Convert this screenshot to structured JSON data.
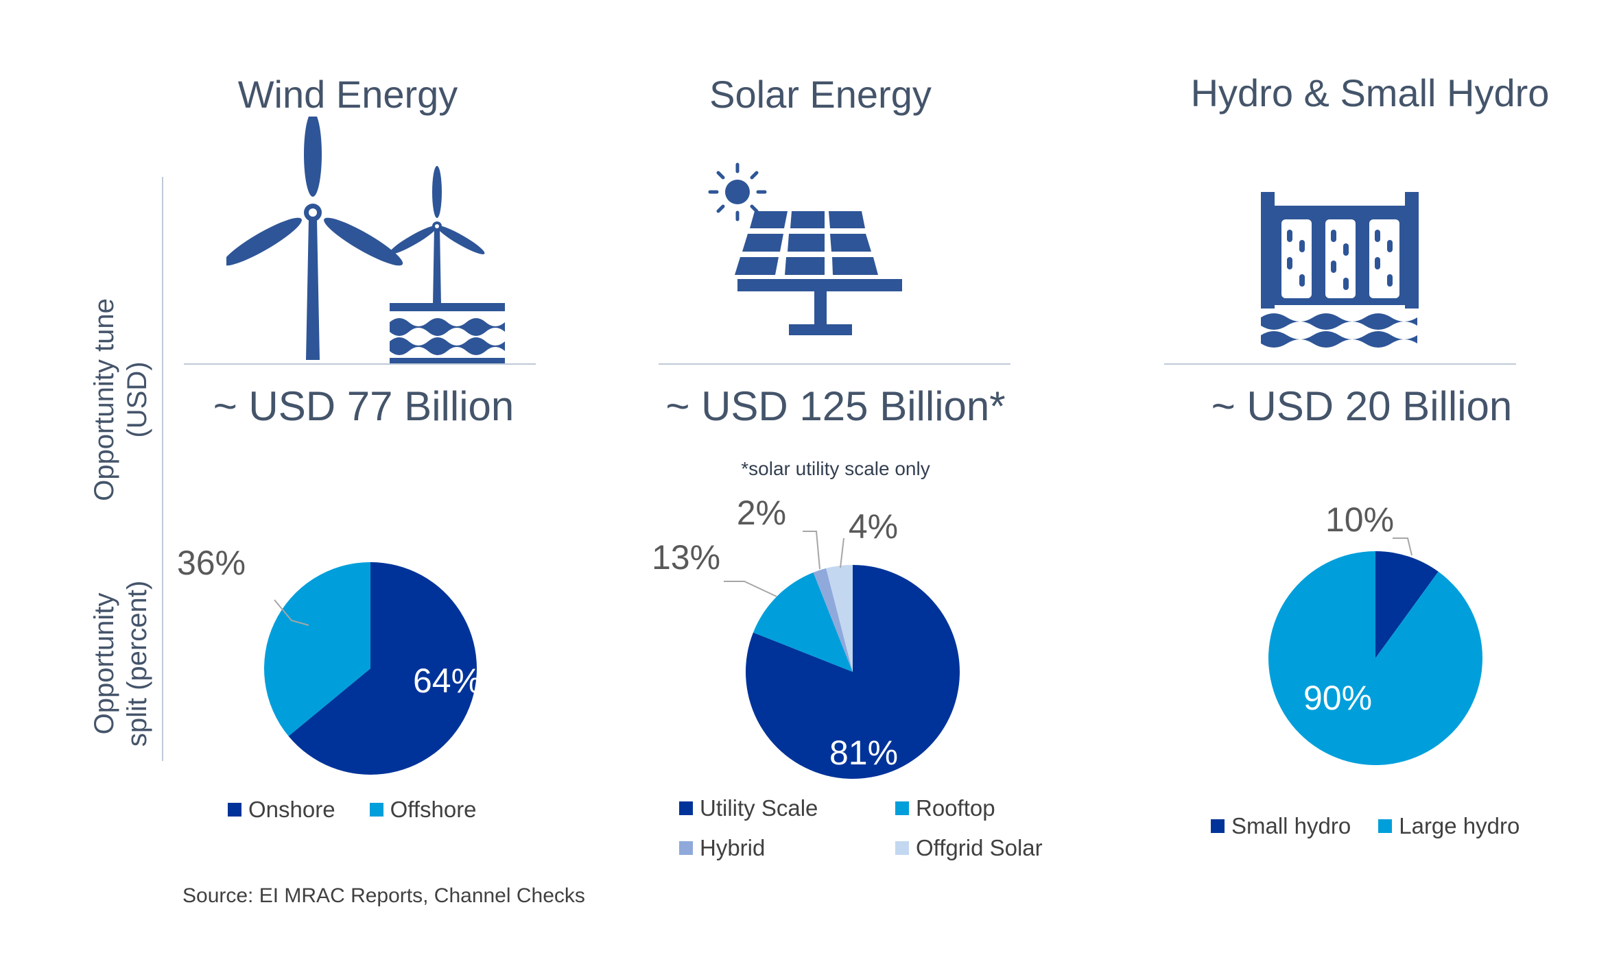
{
  "side_labels": {
    "tune": [
      "Opportunity tune",
      "(USD)"
    ],
    "split": [
      "Opportunity",
      "split (percent)"
    ]
  },
  "colors": {
    "dark_blue": "#003399",
    "light_blue": "#009fdb",
    "hybrid": "#8fa9db",
    "offgrid": "#c3d8f0",
    "icon": "#2e5597",
    "text": "#44546a"
  },
  "panels": {
    "wind": {
      "title": "Wind Energy",
      "amount": "~ USD 77 Billion",
      "icon": "wind-turbine-icon"
    },
    "solar": {
      "title": "Solar Energy",
      "amount": "~ USD 125 Billion*",
      "note": "*solar utility scale only",
      "icon": "solar-panel-icon"
    },
    "hydro": {
      "title": "Hydro & Small Hydro",
      "amount": "~ USD 20 Billion",
      "icon": "hydro-dam-icon"
    }
  },
  "source": "Source: EI MRAC Reports, Channel Checks",
  "chart_data": [
    {
      "type": "pie",
      "title": "Wind Energy",
      "categories": [
        "Onshore",
        "Offshore"
      ],
      "values": [
        64,
        36
      ],
      "labels": [
        "64%",
        "36%"
      ],
      "colors": [
        "#003399",
        "#009fdb"
      ],
      "legend": "bottom"
    },
    {
      "type": "pie",
      "title": "Solar Energy",
      "categories": [
        "Utility Scale",
        "Rooftop",
        "Hybrid",
        "Offgrid Solar"
      ],
      "values": [
        81,
        13,
        2,
        4
      ],
      "labels": [
        "81%",
        "13%",
        "2%",
        "4%"
      ],
      "colors": [
        "#003399",
        "#009fdb",
        "#8fa9db",
        "#c3d8f0"
      ],
      "legend": "bottom"
    },
    {
      "type": "pie",
      "title": "Hydro & Small Hydro",
      "categories": [
        "Small hydro",
        "Large hydro"
      ],
      "values": [
        10,
        90
      ],
      "labels": [
        "10%",
        "90%"
      ],
      "colors": [
        "#003399",
        "#009fdb"
      ],
      "legend": "bottom"
    }
  ]
}
